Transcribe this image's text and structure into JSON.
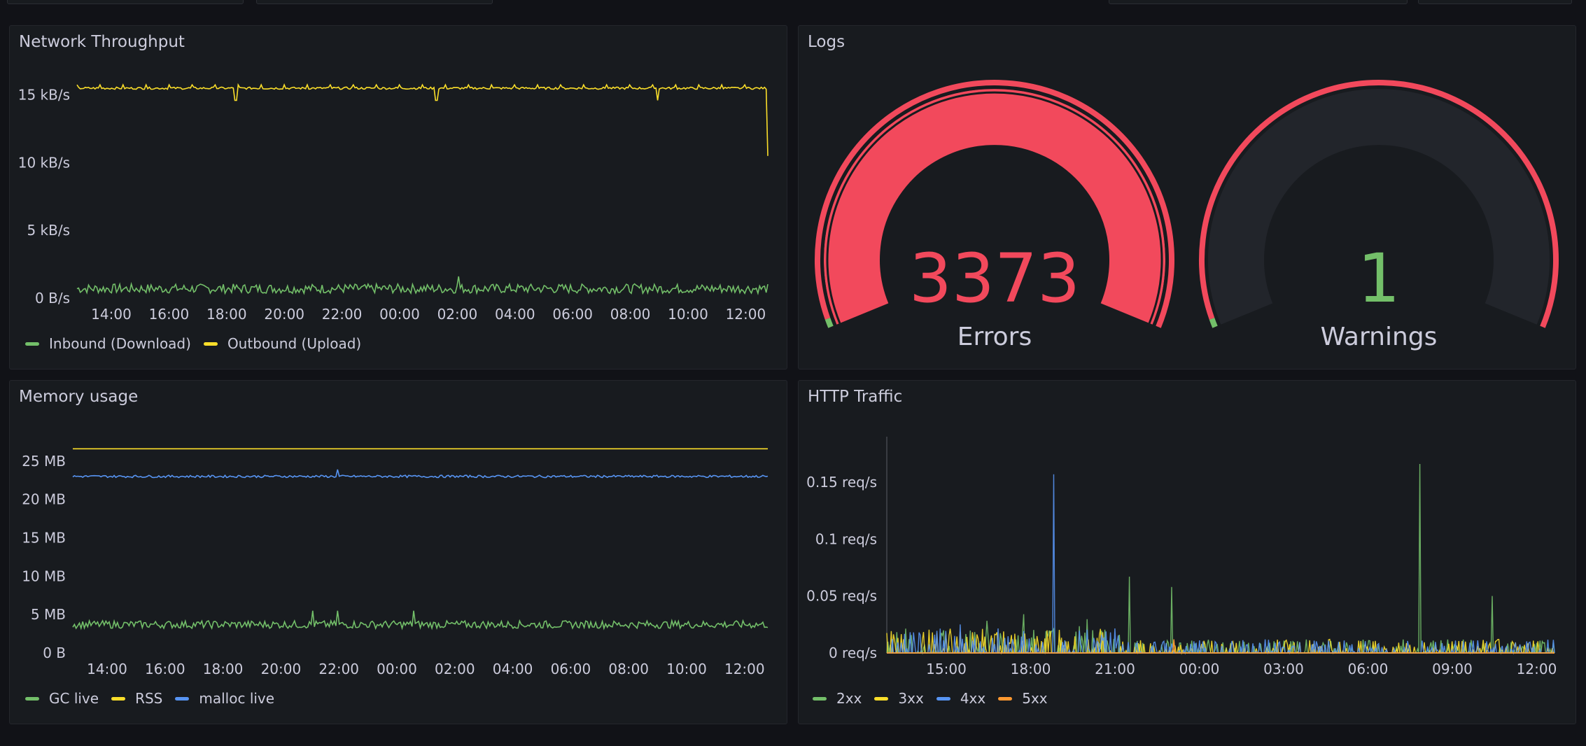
{
  "colors": {
    "green": "#73bf69",
    "yellow": "#fade2a",
    "blue": "#5794f2",
    "orange": "#ff9830",
    "red": "#f2495c",
    "panel_bg": "#181b1f",
    "page_bg": "#111217"
  },
  "panels": {
    "network": {
      "title": "Network Throughput",
      "legend": [
        "Inbound (Download)",
        "Outbound (Upload)"
      ]
    },
    "logs": {
      "title": "Logs",
      "errors": {
        "value": "3373",
        "label": "Errors"
      },
      "warnings": {
        "value": "1",
        "label": "Warnings"
      }
    },
    "memory": {
      "title": "Memory usage",
      "legend": [
        "GC live",
        "RSS",
        "malloc live"
      ]
    },
    "http": {
      "title": "HTTP Traffic",
      "legend": [
        "2xx",
        "3xx",
        "4xx",
        "5xx"
      ]
    }
  },
  "chart_data": [
    {
      "type": "line",
      "title": "Network Throughput",
      "x_ticks": [
        "14:00",
        "16:00",
        "18:00",
        "20:00",
        "22:00",
        "00:00",
        "02:00",
        "04:00",
        "06:00",
        "08:00",
        "10:00",
        "12:00"
      ],
      "y_ticks": [
        "0 B/s",
        "5 kB/s",
        "10 kB/s",
        "15 kB/s"
      ],
      "ylim": [
        0,
        17000
      ],
      "series": [
        {
          "name": "Inbound (Download)",
          "color": "#73bf69",
          "level": 700,
          "noise": 350
        },
        {
          "name": "Outbound (Upload)",
          "color": "#fade2a",
          "level": 15500,
          "noise": 80,
          "dips": [
            0.23,
            0.52,
            0.84
          ],
          "end_value": 10500
        }
      ]
    },
    {
      "type": "line",
      "title": "Memory usage",
      "x_ticks": [
        "14:00",
        "16:00",
        "18:00",
        "20:00",
        "22:00",
        "00:00",
        "02:00",
        "04:00",
        "06:00",
        "08:00",
        "10:00",
        "12:00"
      ],
      "y_ticks": [
        "0 B",
        "5 MB",
        "10 MB",
        "15 MB",
        "20 MB",
        "25 MB"
      ],
      "ylim": [
        0,
        30000000
      ],
      "series": [
        {
          "name": "GC live",
          "color": "#73bf69",
          "level": 3700000,
          "noise": 500000
        },
        {
          "name": "RSS",
          "color": "#fade2a",
          "level": 26600000,
          "noise": 0
        },
        {
          "name": "malloc live",
          "color": "#5794f2",
          "level": 23000000,
          "noise": 150000
        }
      ]
    },
    {
      "type": "line",
      "title": "HTTP Traffic",
      "x_ticks": [
        "15:00",
        "18:00",
        "21:00",
        "00:00",
        "03:00",
        "06:00",
        "09:00",
        "12:00"
      ],
      "y_ticks": [
        "0 req/s",
        "0.05 req/s",
        "0.1 req/s",
        "0.15 req/s"
      ],
      "ylim": [
        0,
        0.19
      ],
      "series": [
        {
          "name": "2xx",
          "color": "#73bf69",
          "peaks": [
            [
              0.205,
              0.034
            ],
            [
              0.363,
              0.067
            ],
            [
              0.427,
              0.058
            ],
            [
              0.798,
              0.166
            ],
            [
              0.907,
              0.05
            ]
          ]
        },
        {
          "name": "3xx",
          "color": "#fade2a",
          "peaks": []
        },
        {
          "name": "4xx",
          "color": "#5794f2",
          "peaks": [
            [
              0.25,
              0.157
            ],
            [
              0.11,
              0.025
            ]
          ]
        },
        {
          "name": "5xx",
          "color": "#ff9830",
          "peaks": [
            [
              0.43,
              0.012
            ]
          ]
        }
      ]
    }
  ]
}
